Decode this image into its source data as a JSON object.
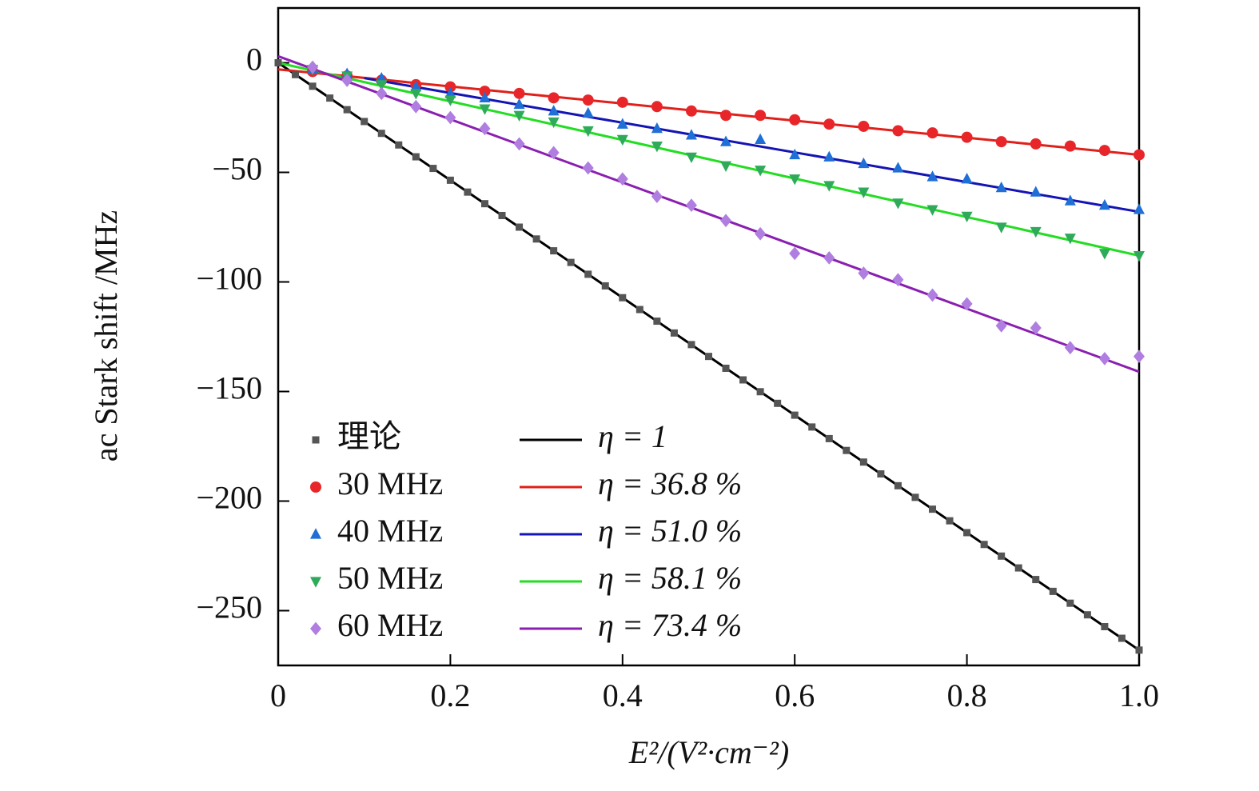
{
  "chart_data": {
    "type": "scatter",
    "x_label": "E²/(V²·cm⁻²)",
    "y_label": "ac Stark shift /MHz",
    "xlim": [
      0,
      1
    ],
    "ylim": [
      -275,
      25
    ],
    "xticks": [
      0,
      0.2,
      0.4,
      0.6,
      0.8,
      {
        "value": 1,
        "label": "1.0"
      }
    ],
    "yticks": [
      0,
      {
        "value": -50,
        "label": "−50"
      },
      {
        "value": -100,
        "label": "−100"
      },
      {
        "value": -150,
        "label": "−150"
      },
      {
        "value": -200,
        "label": "−200"
      },
      {
        "value": -250,
        "label": "−250"
      }
    ],
    "series": [
      {
        "name": "理论",
        "mode": "markers",
        "marker": "square",
        "color": "#555555",
        "x": [
          0,
          0.02,
          0.04,
          0.06,
          0.08,
          0.1,
          0.12,
          0.14,
          0.16,
          0.18,
          0.2,
          0.22,
          0.24,
          0.26,
          0.28,
          0.3,
          0.32,
          0.34,
          0.36,
          0.38,
          0.4,
          0.42,
          0.44,
          0.46,
          0.48,
          0.5,
          0.52,
          0.54,
          0.56,
          0.58,
          0.6,
          0.62,
          0.64,
          0.66,
          0.68,
          0.7,
          0.72,
          0.74,
          0.76,
          0.78,
          0.8,
          0.82,
          0.84,
          0.86,
          0.88,
          0.9,
          0.92,
          0.94,
          0.96,
          0.98,
          1
        ],
        "values": [
          0,
          -5.4,
          -10.7,
          -16.1,
          -21.4,
          -26.8,
          -32.2,
          -37.5,
          -42.9,
          -48.2,
          -53.6,
          -59,
          -64.3,
          -69.7,
          -75,
          -80.4,
          -85.8,
          -91.1,
          -96.5,
          -101.8,
          -107.2,
          -112.6,
          -117.9,
          -123.3,
          -128.6,
          -134,
          -139.4,
          -144.7,
          -150.1,
          -155.4,
          -160.8,
          -166.2,
          -171.5,
          -176.9,
          -182.2,
          -187.6,
          -193,
          -198.3,
          -203.7,
          -209,
          -214.4,
          -219.8,
          -225.1,
          -230.5,
          -235.8,
          -241.2,
          -246.6,
          -251.9,
          -257.3,
          -262.6,
          -268
        ]
      },
      {
        "name": "30 MHz",
        "mode": "markers",
        "marker": "circle",
        "color": "#e8262a",
        "x": [
          0.04,
          0.08,
          0.12,
          0.16,
          0.2,
          0.24,
          0.28,
          0.32,
          0.36,
          0.4,
          0.44,
          0.48,
          0.52,
          0.56,
          0.6,
          0.64,
          0.68,
          0.72,
          0.76,
          0.8,
          0.84,
          0.88,
          0.92,
          0.96,
          1
        ],
        "values": [
          -4,
          -6,
          -8,
          -10,
          -11,
          -13,
          -14,
          -16,
          -17,
          -18,
          -20,
          -22,
          -24,
          -24,
          -26,
          -28,
          -29,
          -31,
          -32,
          -34,
          -36,
          -37,
          -38,
          -40,
          -42
        ]
      },
      {
        "name": "40 MHz",
        "mode": "markers",
        "marker": "triangle-up",
        "color": "#1f6fd6",
        "x": [
          0.04,
          0.08,
          0.12,
          0.16,
          0.2,
          0.24,
          0.28,
          0.32,
          0.36,
          0.4,
          0.44,
          0.48,
          0.52,
          0.56,
          0.6,
          0.64,
          0.68,
          0.72,
          0.76,
          0.8,
          0.84,
          0.88,
          0.92,
          0.96,
          1
        ],
        "values": [
          -3,
          -5,
          -7,
          -11,
          -14,
          -16,
          -19,
          -22,
          -23,
          -28,
          -30,
          -33,
          -36,
          -35,
          -42,
          -43,
          -46,
          -48,
          -52,
          -53,
          -57,
          -59,
          -63,
          -65,
          -67
        ]
      },
      {
        "name": "50 MHz",
        "mode": "markers",
        "marker": "triangle-down",
        "color": "#2faa5a",
        "x": [
          0.04,
          0.08,
          0.12,
          0.16,
          0.2,
          0.24,
          0.28,
          0.32,
          0.36,
          0.4,
          0.44,
          0.48,
          0.52,
          0.56,
          0.6,
          0.64,
          0.68,
          0.72,
          0.76,
          0.8,
          0.84,
          0.88,
          0.92,
          0.96,
          1
        ],
        "values": [
          -3,
          -6,
          -10,
          -14,
          -17,
          -21,
          -24,
          -27,
          -31,
          -35,
          -38,
          -43,
          -47,
          -49,
          -53,
          -56,
          -59,
          -64,
          -67,
          -70,
          -75,
          -77,
          -80,
          -87,
          -88
        ]
      },
      {
        "name": "60 MHz",
        "mode": "markers",
        "marker": "diamond",
        "color": "#b07ee0",
        "x": [
          0.04,
          0.08,
          0.12,
          0.16,
          0.2,
          0.24,
          0.28,
          0.32,
          0.36,
          0.4,
          0.44,
          0.48,
          0.52,
          0.56,
          0.6,
          0.64,
          0.68,
          0.72,
          0.76,
          0.8,
          0.84,
          0.88,
          0.92,
          0.96,
          1
        ],
        "values": [
          -2,
          -8,
          -14,
          -20,
          -25,
          -30,
          -37,
          -41,
          -48,
          -53,
          -61,
          -65,
          -72,
          -78,
          -87,
          -89,
          -96,
          -99,
          -106,
          -110,
          -120,
          -121,
          -130,
          -135,
          -134
        ]
      },
      {
        "name": "η = 1",
        "mode": "line",
        "color": "#000000",
        "x": [
          0,
          1
        ],
        "values": [
          0,
          -268
        ]
      },
      {
        "name": "η = 36.8 %",
        "mode": "line",
        "color": "#e0201a",
        "x": [
          0,
          1
        ],
        "values": [
          -3,
          -42
        ]
      },
      {
        "name": "η = 51.0 %",
        "mode": "line",
        "color": "#1414b4",
        "x": [
          0.1,
          1
        ],
        "values": [
          -7,
          -68
        ]
      },
      {
        "name": "η = 58.1 %",
        "mode": "line",
        "color": "#22dd22",
        "x": [
          0,
          1
        ],
        "values": [
          0,
          -88
        ]
      },
      {
        "name": "η = 73.4 %",
        "mode": "line",
        "color": "#8a1fb0",
        "x": [
          0,
          1
        ],
        "values": [
          3,
          -141
        ]
      }
    ]
  }
}
